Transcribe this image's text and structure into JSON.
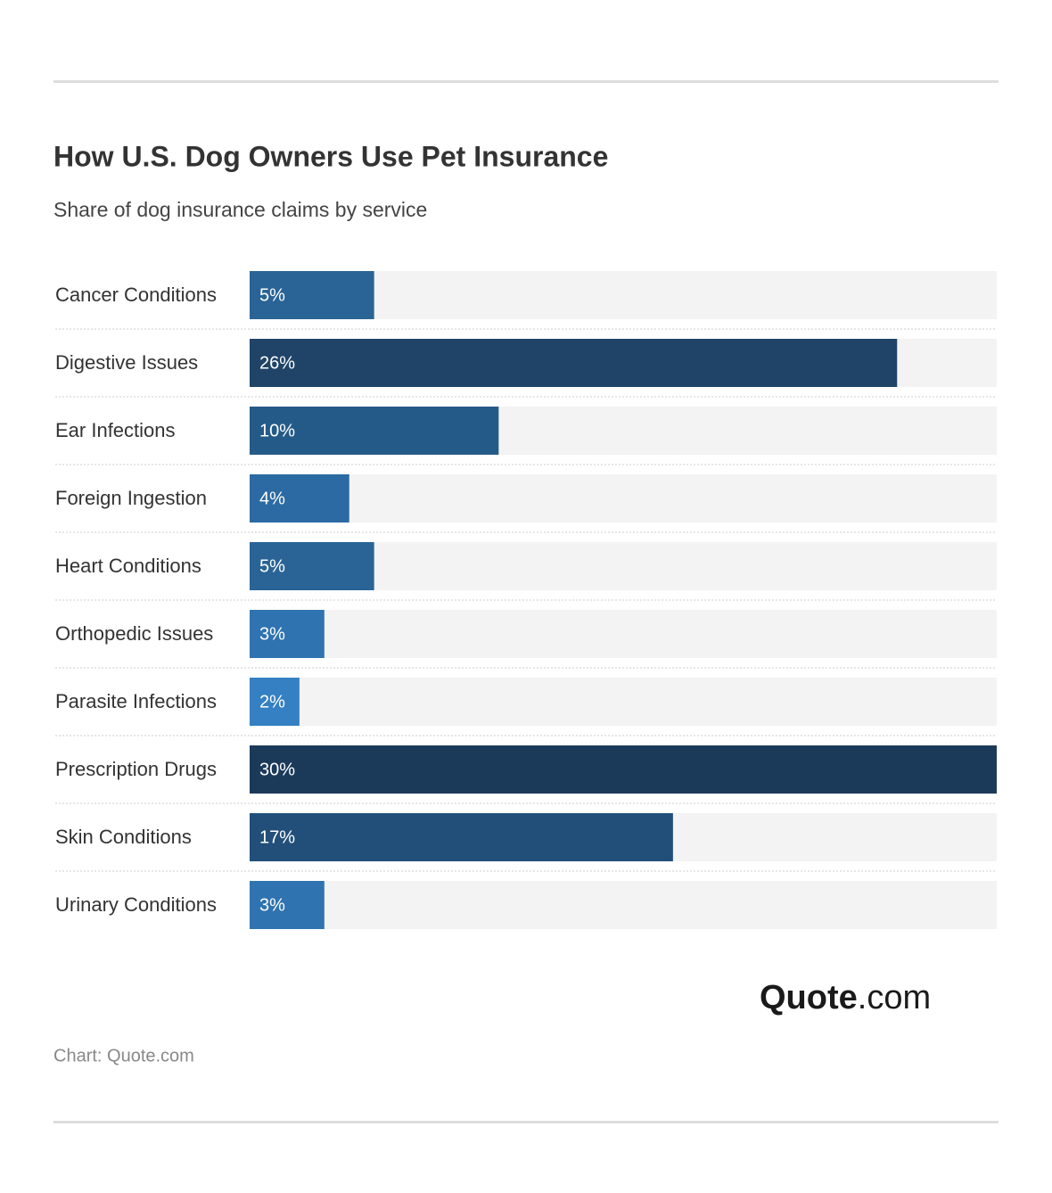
{
  "chart_data": {
    "type": "bar",
    "title": "How U.S. Dog Owners Use Pet Insurance",
    "subtitle": "Share of dog insurance claims by service",
    "categories": [
      "Cancer Conditions",
      "Digestive Issues",
      "Ear Infections",
      "Foreign Ingestion",
      "Heart Conditions",
      "Orthopedic Issues",
      "Parasite Infections",
      "Prescription Drugs",
      "Skin Conditions",
      "Urinary Conditions"
    ],
    "values": [
      5,
      26,
      10,
      4,
      5,
      3,
      2,
      30,
      17,
      3
    ],
    "value_labels": [
      "5%",
      "26%",
      "10%",
      "4%",
      "5%",
      "3%",
      "2%",
      "30%",
      "17%",
      "3%"
    ],
    "colors": [
      "#2a6496",
      "#1f4468",
      "#245a88",
      "#2b6aa2",
      "#2a6496",
      "#2f73b1",
      "#3480c2",
      "#1b3a5a",
      "#214f7a",
      "#2f73b1"
    ],
    "xlim": [
      0,
      30
    ],
    "logo": {
      "bold": "Quote",
      "rest": ".com"
    },
    "source": "Chart: Quote.com"
  }
}
